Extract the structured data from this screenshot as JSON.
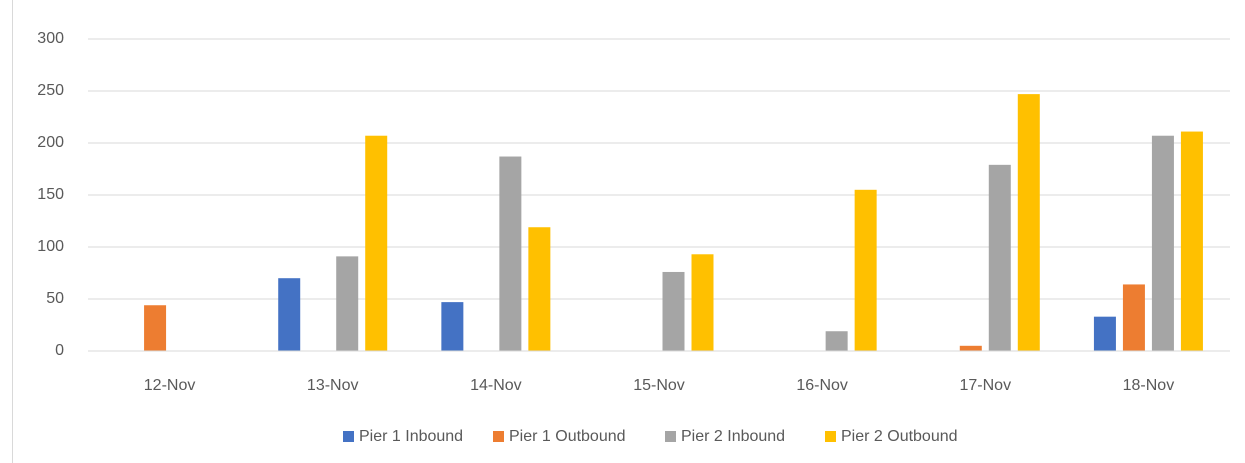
{
  "chart_data": {
    "type": "bar",
    "categories": [
      "12-Nov",
      "13-Nov",
      "14-Nov",
      "15-Nov",
      "16-Nov",
      "17-Nov",
      "18-Nov"
    ],
    "series": [
      {
        "name": "Pier 1 Inbound",
        "color": "#4472c4",
        "values": [
          0,
          70,
          47,
          0,
          0,
          0,
          33
        ]
      },
      {
        "name": "Pier 1 Outbound",
        "color": "#ed7d31",
        "values": [
          44,
          0,
          0,
          0,
          0,
          5,
          64
        ]
      },
      {
        "name": "Pier 2 Inbound",
        "color": "#a5a5a5",
        "values": [
          0,
          91,
          187,
          76,
          19,
          179,
          207
        ]
      },
      {
        "name": "Pier 2 Outbound",
        "color": "#ffc000",
        "values": [
          0,
          207,
          119,
          93,
          155,
          247,
          211
        ]
      }
    ],
    "ylim": [
      0,
      300
    ],
    "yticks": [
      0,
      50,
      100,
      150,
      200,
      250,
      300
    ],
    "grid": true,
    "legend": "bottom"
  }
}
